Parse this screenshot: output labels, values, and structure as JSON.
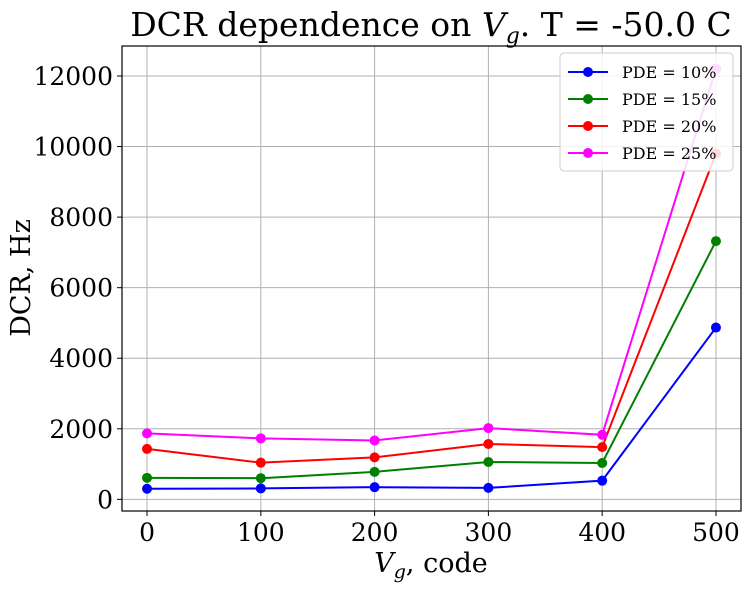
{
  "chart_data": {
    "type": "line",
    "title": "DCR dependence on V_g. T = -50.0 C",
    "title_parts": {
      "before": "DCR dependence on ",
      "var": "V",
      "sub": "g",
      "after": ". T = -50.0 C"
    },
    "xlabel": "V_g, code",
    "xlabel_parts": {
      "var": "V",
      "sub": "g",
      "after": ", code"
    },
    "ylabel": "DCR, Hz",
    "x": [
      0,
      100,
      200,
      300,
      400,
      500
    ],
    "xticks": [
      0,
      100,
      200,
      300,
      400,
      500
    ],
    "yticks": [
      0,
      2000,
      4000,
      6000,
      8000,
      10000,
      12000
    ],
    "xlim": [
      -22,
      522
    ],
    "ylim": [
      -330,
      12850
    ],
    "grid": true,
    "legend_position": "top-right",
    "series": [
      {
        "name": "PDE = 10%",
        "color": "#0000ff",
        "values": [
          300,
          310,
          345,
          325,
          530,
          4870
        ]
      },
      {
        "name": "PDE = 15%",
        "color": "#008000",
        "values": [
          610,
          600,
          780,
          1060,
          1030,
          7320
        ]
      },
      {
        "name": "PDE = 20%",
        "color": "#ff0000",
        "values": [
          1430,
          1040,
          1190,
          1570,
          1480,
          9800
        ]
      },
      {
        "name": "PDE = 25%",
        "color": "#ff00ff",
        "values": [
          1870,
          1730,
          1670,
          2020,
          1830,
          12200
        ]
      }
    ]
  }
}
